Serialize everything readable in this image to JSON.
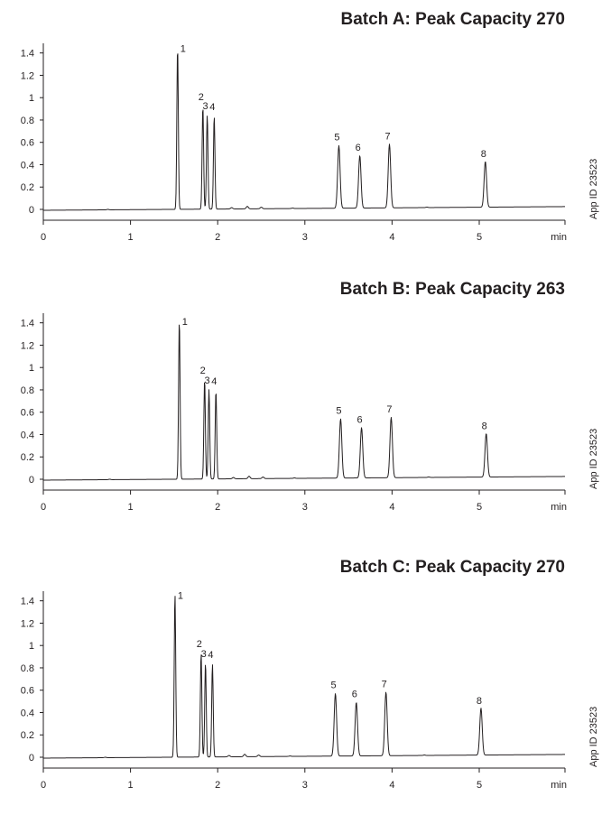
{
  "chart_data": [
    {
      "type": "line",
      "title": "Batch A: Peak Capacity 270",
      "x_unit": "min",
      "xlim": [
        0,
        6
      ],
      "ylim": [
        -0.1,
        1.5
      ],
      "xticks": [
        "0",
        "1",
        "2",
        "3",
        "4",
        "5"
      ],
      "yticks": [
        "0",
        "0.2",
        "0.4",
        "0.6",
        "0.8",
        "1",
        "1.2",
        "1.4"
      ],
      "side_label": "App ID 23523",
      "peaks": [
        {
          "label": "1",
          "rt": 1.54,
          "height": 1.45
        },
        {
          "label": "2",
          "rt": 1.83,
          "height": 0.92
        },
        {
          "label": "3",
          "rt": 1.88,
          "height": 0.84
        },
        {
          "label": "4",
          "rt": 1.96,
          "height": 0.83
        },
        {
          "label": "5",
          "rt": 3.39,
          "height": 0.56
        },
        {
          "label": "6",
          "rt": 3.63,
          "height": 0.47
        },
        {
          "label": "7",
          "rt": 3.97,
          "height": 0.57
        },
        {
          "label": "8",
          "rt": 5.07,
          "height": 0.41
        }
      ]
    },
    {
      "type": "line",
      "title": "Batch B: Peak Capacity 263",
      "x_unit": "min",
      "xlim": [
        0,
        6
      ],
      "ylim": [
        -0.1,
        1.5
      ],
      "xticks": [
        "0",
        "1",
        "2",
        "3",
        "4",
        "5"
      ],
      "yticks": [
        "0",
        "0.2",
        "0.4",
        "0.6",
        "0.8",
        "1",
        "1.2",
        "1.4"
      ],
      "side_label": "App ID 23523",
      "peaks": [
        {
          "label": "1",
          "rt": 1.56,
          "height": 1.42
        },
        {
          "label": "2",
          "rt": 1.85,
          "height": 0.89
        },
        {
          "label": "3",
          "rt": 1.9,
          "height": 0.8
        },
        {
          "label": "4",
          "rt": 1.98,
          "height": 0.79
        },
        {
          "label": "5",
          "rt": 3.41,
          "height": 0.53
        },
        {
          "label": "6",
          "rt": 3.65,
          "height": 0.45
        },
        {
          "label": "7",
          "rt": 3.99,
          "height": 0.54
        },
        {
          "label": "8",
          "rt": 5.08,
          "height": 0.39
        }
      ]
    },
    {
      "type": "line",
      "title": "Batch C: Peak Capacity 270",
      "x_unit": "min",
      "xlim": [
        0,
        6
      ],
      "ylim": [
        -0.1,
        1.5
      ],
      "xticks": [
        "0",
        "1",
        "2",
        "3",
        "4",
        "5"
      ],
      "yticks": [
        "0",
        "0.2",
        "0.4",
        "0.6",
        "0.8",
        "1",
        "1.2",
        "1.4"
      ],
      "side_label": "App ID 23523",
      "peaks": [
        {
          "label": "1",
          "rt": 1.51,
          "height": 1.46
        },
        {
          "label": "2",
          "rt": 1.81,
          "height": 0.93
        },
        {
          "label": "3",
          "rt": 1.86,
          "height": 0.84
        },
        {
          "label": "4",
          "rt": 1.94,
          "height": 0.83
        },
        {
          "label": "5",
          "rt": 3.35,
          "height": 0.56
        },
        {
          "label": "6",
          "rt": 3.59,
          "height": 0.48
        },
        {
          "label": "7",
          "rt": 3.93,
          "height": 0.57
        },
        {
          "label": "8",
          "rt": 5.02,
          "height": 0.42
        }
      ]
    }
  ]
}
